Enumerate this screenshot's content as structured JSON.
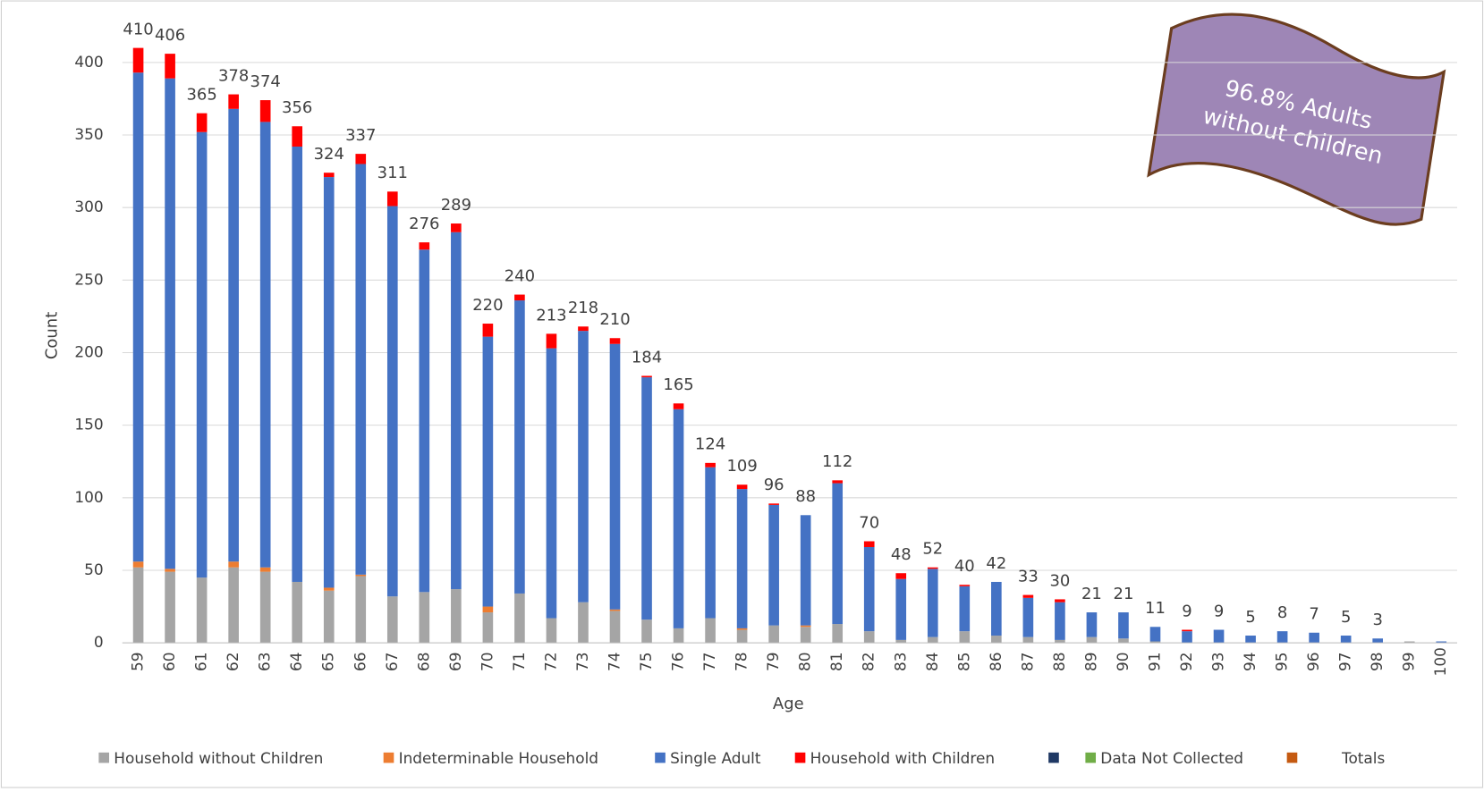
{
  "chart_data": {
    "type": "stacked-bar",
    "xlabel": "Age",
    "ylabel": "Count",
    "annotation": [
      "96.8% Adults",
      "without children"
    ],
    "categories": [
      "59",
      "60",
      "61",
      "62",
      "63",
      "64",
      "65",
      "66",
      "67",
      "68",
      "69",
      "70",
      "71",
      "72",
      "73",
      "74",
      "75",
      "76",
      "77",
      "78",
      "79",
      "80",
      "81",
      "82",
      "83",
      "84",
      "85",
      "86",
      "87",
      "88",
      "89",
      "90",
      "91",
      "92",
      "93",
      "94",
      "95",
      "96",
      "97",
      "98",
      "99",
      "100"
    ],
    "series": [
      {
        "name": "Household without Children",
        "color": "#a5a5a5",
        "values": [
          52,
          49,
          45,
          52,
          49,
          42,
          36,
          46,
          32,
          35,
          37,
          21,
          34,
          17,
          28,
          22,
          16,
          10,
          17,
          9,
          12,
          11,
          13,
          8,
          2,
          4,
          8,
          5,
          4,
          2,
          4,
          3,
          1,
          0,
          0,
          0,
          0,
          0,
          0,
          0,
          1,
          0
        ]
      },
      {
        "name": "Indeterminable Household",
        "color": "#ed7d31",
        "values": [
          4,
          2,
          0,
          4,
          3,
          0,
          2,
          1,
          0,
          0,
          0,
          4,
          0,
          0,
          0,
          1,
          0,
          0,
          0,
          1,
          0,
          1,
          0,
          0,
          0,
          0,
          0,
          0,
          0,
          0,
          0,
          0,
          0,
          0,
          0,
          0,
          0,
          0,
          0,
          0,
          0,
          0
        ]
      },
      {
        "name": "Single Adult",
        "color": "#4472c4",
        "values": [
          337,
          338,
          307,
          312,
          307,
          300,
          283,
          283,
          269,
          236,
          246,
          186,
          202,
          186,
          187,
          183,
          167,
          151,
          104,
          96,
          83,
          76,
          97,
          58,
          42,
          47,
          31,
          37,
          27,
          26,
          17,
          18,
          10,
          8,
          9,
          5,
          8,
          7,
          5,
          3,
          0,
          1
        ]
      },
      {
        "name": "Household with Children",
        "color": "#ff0000",
        "values": [
          17,
          17,
          13,
          10,
          15,
          14,
          3,
          7,
          10,
          5,
          6,
          9,
          4,
          10,
          3,
          4,
          1,
          4,
          3,
          3,
          1,
          0,
          2,
          4,
          4,
          1,
          1,
          0,
          2,
          2,
          0,
          0,
          0,
          1,
          0,
          0,
          0,
          0,
          0,
          0,
          0,
          0
        ]
      },
      {
        "name": "Data Not Collected",
        "color": "#70ad47",
        "values": [
          0,
          0,
          0,
          0,
          0,
          0,
          0,
          0,
          0,
          0,
          0,
          0,
          0,
          0,
          0,
          0,
          0,
          0,
          0,
          0,
          0,
          0,
          0,
          0,
          0,
          0,
          0,
          0,
          0,
          0,
          0,
          0,
          0,
          0,
          0,
          0,
          0,
          0,
          0,
          0,
          0,
          0
        ]
      }
    ],
    "totals": {
      "name": "Totals",
      "color": "#c55a11",
      "values": [
        410,
        406,
        365,
        378,
        374,
        356,
        324,
        337,
        311,
        276,
        289,
        220,
        240,
        213,
        218,
        210,
        184,
        165,
        124,
        109,
        96,
        88,
        112,
        70,
        48,
        52,
        40,
        42,
        33,
        30,
        21,
        21,
        11,
        9,
        9,
        5,
        8,
        7,
        5,
        3,
        null,
        null
      ]
    },
    "ylim": [
      0,
      430
    ],
    "yticks": [
      0,
      50,
      100,
      150,
      200,
      250,
      300,
      350,
      400
    ],
    "grid": true
  }
}
